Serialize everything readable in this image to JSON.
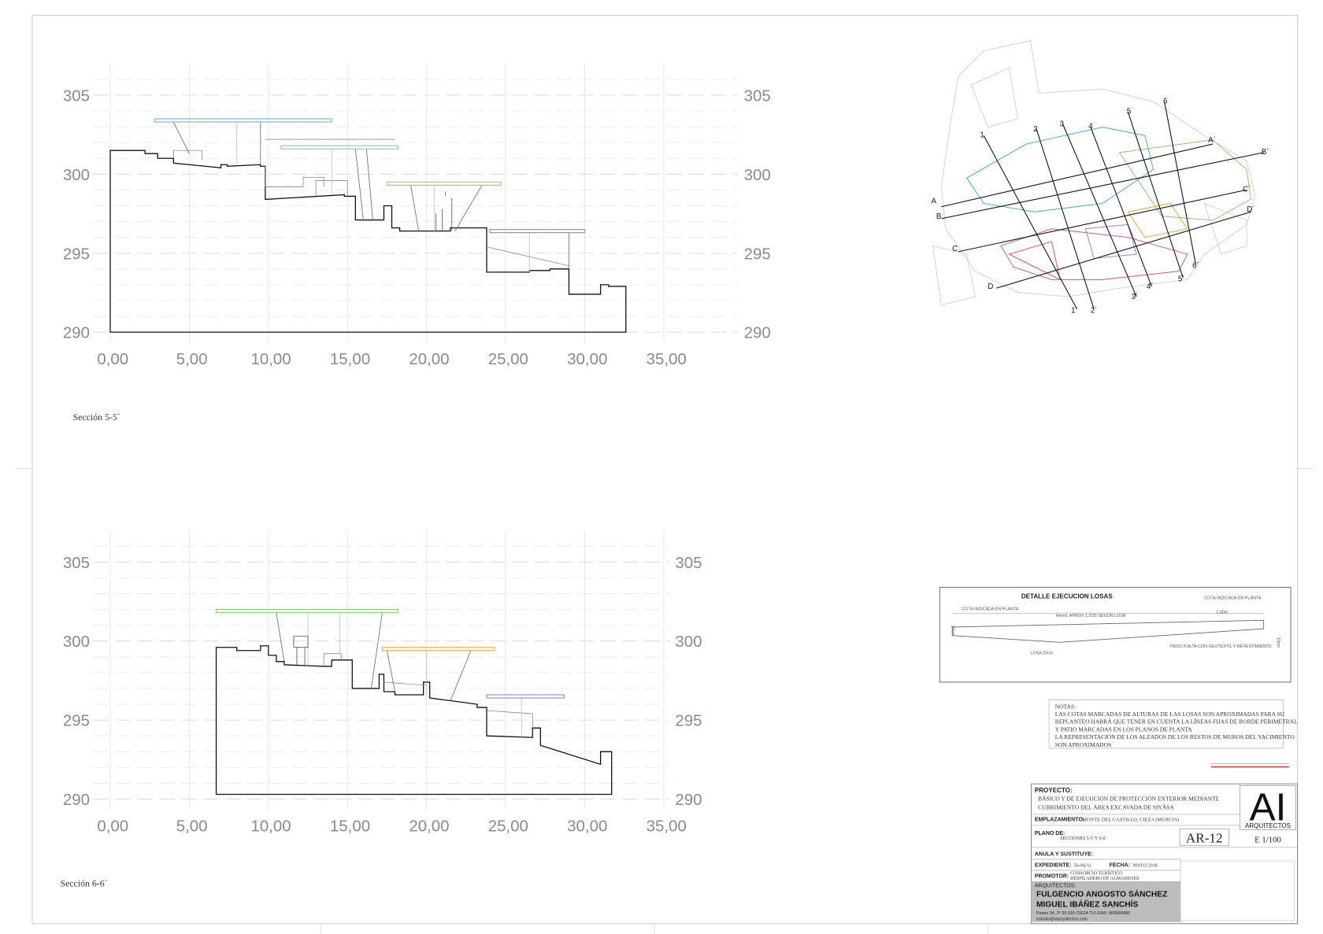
{
  "sections": [
    {
      "title": "Sección 5-5´",
      "y_labels_left": [
        "305",
        "300",
        "295",
        "290"
      ],
      "y_labels_right": [
        "305",
        "300",
        "295",
        "290"
      ],
      "x_labels": [
        "0,00",
        "5,00",
        "10,00",
        "15,00",
        "20,00",
        "25,00",
        "30,00",
        "35,00"
      ]
    },
    {
      "title": "Sección 6-6´",
      "y_labels_left": [
        "305",
        "300",
        "295",
        "290"
      ],
      "y_labels_right": [
        "305",
        "300",
        "295",
        "290"
      ],
      "x_labels": [
        "0,00",
        "5,00",
        "10,00",
        "15,00",
        "20,00",
        "25,00",
        "30,00",
        "35,00"
      ]
    }
  ],
  "plan": {
    "section_numbers": [
      "1",
      "2",
      "3",
      "4",
      "5",
      "6"
    ],
    "section_numbers_end": [
      "1´",
      "2´",
      "3´",
      "4´",
      "5´",
      "6´"
    ],
    "section_letters": [
      "A",
      "B",
      "C",
      "D"
    ],
    "section_letters_end": [
      "A´",
      "B´",
      "C´",
      "D´"
    ]
  },
  "detail": {
    "title": "DETALLE EJECUCION LOSAS",
    "label_left": "COTA INDICADA EN PLANTA",
    "label_right": "COTA INDICADA EN PLANTA",
    "width": "1,00m",
    "height_note": "Hmed. APROX 1.5/25 SEGÚN LOSA",
    "slab": "LOSA 20cm",
    "base": "PEOC P.ALTA CON GEOTEXTIL Y REVESTIMIENTO",
    "edge_left": "10cm",
    "edge_right": "10cm"
  },
  "notes": {
    "heading": "NOTAS:",
    "lines": [
      "LAS COTAS MARCADAS DE ALTURAS DE LAS LOSAS SON APROXIMADAS PARA SU",
      "REPLANTEO HABRÁ QUE TENER EN CUENTA LA LÍNEAS FIJAS DE BORDE PERIMETRAL",
      "Y PATIO MARCADAS EN LOS PLANOS DE PLANTA",
      "LA REPRESENTACIÓN DE LOS ALZADOS DE LOS RESTOS DE MUROS DEL YACIMIENTO",
      "SON APROXIMADOS"
    ]
  },
  "title_block": {
    "project_label": "PROYECTO:",
    "project_lines": [
      "BÁSICO Y DE EJECUCIÓN DE PROTECCIÓN EXTERIOR MEDIANTE",
      "CUBRIMIENTO DEL ÁREA EXCAVADA DE SIYĀSA"
    ],
    "location_label": "EMPLAZAMIENTO:",
    "location": "MONTE DEL CASTILLO, CIEZA (MURCIA)",
    "plan_label": "PLANO DE:",
    "plan": "SECCIONES 5-5' Y 6-6'",
    "sheet": "AR-12",
    "scale": "E 1/100",
    "logo": "AI",
    "logo_sub": "ARQUITECTOS",
    "replaces_label": "ANULA Y SUSTITUYE:",
    "file_label": "EXPEDIENTE:",
    "file": "56-06(A)",
    "date_label": "FECHA:",
    "date": "MAYO 2018",
    "promoter_label": "PROMOTOR:",
    "promoter_lines": [
      "CONSORCIO TURÍSTICO",
      "DESFILADERO DE ALMADENES"
    ],
    "architects_label": "ARQUITECTOS:",
    "architects": [
      "FULGENCIO ANGOSTO SÁNCHEZ",
      "MIGUEL IBÁÑEZ SANCHÍS"
    ],
    "address": "Paseo 34, 2º 30.530 CIEZA TLF./FAX: 868960880",
    "email": "estudio@aiarquitectos.com"
  }
}
